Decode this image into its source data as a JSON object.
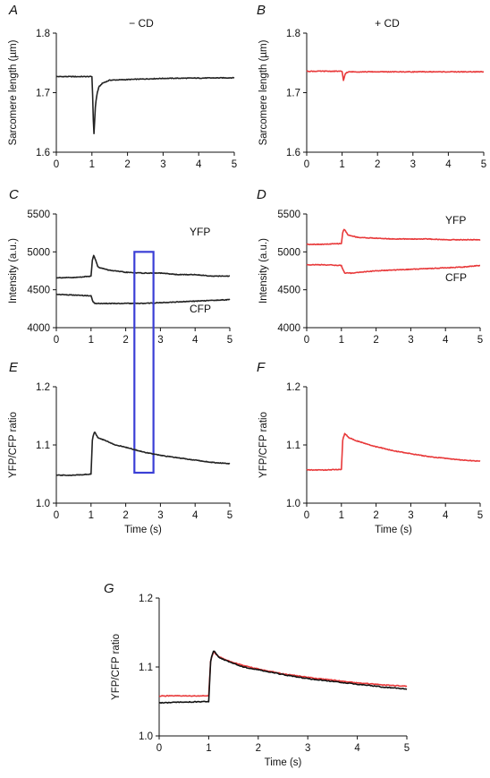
{
  "chart_data": [
    {
      "panel": "A",
      "type": "line",
      "title": "− CD",
      "xlabel": "",
      "ylabel": "Sarcomere length (µm)",
      "xlim": [
        0,
        5
      ],
      "ylim": [
        1.6,
        1.8
      ],
      "xticks": [
        0,
        1,
        2,
        3,
        4,
        5
      ],
      "yticks": [
        1.6,
        1.7,
        1.8
      ],
      "ydecimals": 1,
      "series": [
        {
          "color": "#222222",
          "x": [
            0,
            0.95,
            1.0,
            1.03,
            1.05,
            1.07,
            1.1,
            1.15,
            1.2,
            1.3,
            1.5,
            2.0,
            3.0,
            5.0
          ],
          "y": [
            1.727,
            1.727,
            1.727,
            1.68,
            1.622,
            1.645,
            1.68,
            1.7,
            1.71,
            1.716,
            1.721,
            1.722,
            1.724,
            1.725
          ]
        }
      ]
    },
    {
      "panel": "B",
      "type": "line",
      "title": "+ CD",
      "xlabel": "",
      "ylabel": "Sarcomere length (µm)",
      "xlim": [
        0,
        5
      ],
      "ylim": [
        1.6,
        1.8
      ],
      "xticks": [
        0,
        1,
        2,
        3,
        4,
        5
      ],
      "yticks": [
        1.6,
        1.7,
        1.8
      ],
      "ydecimals": 1,
      "series": [
        {
          "color": "#e8393a",
          "x": [
            0,
            0.95,
            1.0,
            1.04,
            1.07,
            1.1,
            1.2,
            1.4,
            5.0
          ],
          "y": [
            1.736,
            1.736,
            1.735,
            1.72,
            1.728,
            1.733,
            1.735,
            1.735,
            1.735
          ]
        }
      ]
    },
    {
      "panel": "C",
      "type": "line",
      "title": "",
      "xlabel": "",
      "ylabel": "Intensity (a.u.)",
      "xlim": [
        0,
        5
      ],
      "ylim": [
        4000,
        5500
      ],
      "xticks": [
        0,
        1,
        2,
        3,
        4,
        5
      ],
      "yticks": [
        4000,
        4500,
        5000,
        5500
      ],
      "ydecimals": 0,
      "series": [
        {
          "name": "YFP",
          "color": "#222222",
          "x": [
            0,
            0.5,
            1.0,
            1.04,
            1.08,
            1.2,
            1.5,
            2.0,
            2.5,
            3.0,
            3.5,
            4.0,
            4.5,
            5.0
          ],
          "y": [
            4660,
            4660,
            4680,
            4900,
            4960,
            4800,
            4760,
            4730,
            4720,
            4720,
            4700,
            4700,
            4680,
            4680
          ]
        },
        {
          "name": "CFP",
          "color": "#222222",
          "x": [
            0,
            0.5,
            1.0,
            1.05,
            1.1,
            1.5,
            2.0,
            2.5,
            3.0,
            3.5,
            4.0,
            4.5,
            5.0
          ],
          "y": [
            4440,
            4430,
            4420,
            4350,
            4320,
            4320,
            4320,
            4320,
            4330,
            4340,
            4350,
            4360,
            4370
          ]
        }
      ],
      "highlight": {
        "x": [
          2.25,
          2.8
        ],
        "y": [
          4000,
          5000
        ]
      }
    },
    {
      "panel": "D",
      "type": "line",
      "title": "",
      "xlabel": "",
      "ylabel": "Intensity (a.u.)",
      "xlim": [
        0,
        5
      ],
      "ylim": [
        4000,
        5500
      ],
      "xticks": [
        0,
        1,
        2,
        3,
        4,
        5
      ],
      "yticks": [
        4000,
        4500,
        5000,
        5500
      ],
      "ydecimals": 0,
      "series": [
        {
          "name": "YFP",
          "color": "#e8393a",
          "x": [
            0,
            0.5,
            1.0,
            1.04,
            1.08,
            1.2,
            1.5,
            2.0,
            2.5,
            3.0,
            3.5,
            4.0,
            4.5,
            5.0
          ],
          "y": [
            5100,
            5100,
            5110,
            5260,
            5300,
            5220,
            5190,
            5180,
            5170,
            5170,
            5170,
            5160,
            5160,
            5160
          ]
        },
        {
          "name": "CFP",
          "color": "#e8393a",
          "x": [
            0,
            0.5,
            1.0,
            1.05,
            1.1,
            1.3,
            1.5,
            2.0,
            2.5,
            3.0,
            3.5,
            4.0,
            4.5,
            5.0
          ],
          "y": [
            4830,
            4830,
            4820,
            4760,
            4720,
            4720,
            4730,
            4750,
            4760,
            4770,
            4780,
            4790,
            4800,
            4820
          ]
        }
      ]
    },
    {
      "panel": "E",
      "type": "line",
      "title": "",
      "xlabel": "Time (s)",
      "ylabel": "YFP/CFP ratio",
      "xlim": [
        0,
        5
      ],
      "ylim": [
        1.0,
        1.2
      ],
      "xticks": [
        0,
        1,
        2,
        3,
        4,
        5
      ],
      "yticks": [
        1.0,
        1.1,
        1.2
      ],
      "ydecimals": 1,
      "series": [
        {
          "color": "#222222",
          "x": [
            0,
            0.5,
            1.0,
            1.04,
            1.1,
            1.2,
            1.4,
            1.7,
            2.0,
            2.5,
            3.0,
            3.5,
            4.0,
            4.5,
            5.0
          ],
          "y": [
            1.048,
            1.048,
            1.05,
            1.11,
            1.123,
            1.112,
            1.108,
            1.1,
            1.096,
            1.088,
            1.082,
            1.078,
            1.074,
            1.07,
            1.068
          ]
        }
      ]
    },
    {
      "panel": "F",
      "type": "line",
      "title": "",
      "xlabel": "Time (s)",
      "ylabel": "YFP/CFP ratio",
      "xlim": [
        0,
        5
      ],
      "ylim": [
        1.0,
        1.2
      ],
      "xticks": [
        0,
        1,
        2,
        3,
        4,
        5
      ],
      "yticks": [
        1.0,
        1.1,
        1.2
      ],
      "ydecimals": 1,
      "series": [
        {
          "color": "#e8393a",
          "x": [
            0,
            0.5,
            1.0,
            1.04,
            1.1,
            1.2,
            1.4,
            1.7,
            2.0,
            2.5,
            3.0,
            3.5,
            4.0,
            4.5,
            5.0
          ],
          "y": [
            1.057,
            1.057,
            1.058,
            1.11,
            1.12,
            1.113,
            1.108,
            1.102,
            1.097,
            1.09,
            1.085,
            1.08,
            1.077,
            1.074,
            1.072
          ]
        }
      ]
    },
    {
      "panel": "G",
      "type": "line",
      "title": "",
      "xlabel": "Time (s)",
      "ylabel": "YFP/CFP ratio",
      "xlim": [
        0,
        5
      ],
      "ylim": [
        1.0,
        1.2
      ],
      "xticks": [
        0,
        1,
        2,
        3,
        4,
        5
      ],
      "yticks": [
        1.0,
        1.1,
        1.2
      ],
      "ydecimals": 1,
      "series": [
        {
          "color": "#e8393a",
          "x": [
            0,
            0.5,
            1.0,
            1.04,
            1.1,
            1.2,
            1.4,
            1.7,
            2.0,
            2.5,
            3.0,
            3.5,
            4.0,
            4.5,
            5.0
          ],
          "y": [
            1.058,
            1.058,
            1.058,
            1.11,
            1.122,
            1.115,
            1.109,
            1.102,
            1.097,
            1.09,
            1.085,
            1.081,
            1.077,
            1.074,
            1.072
          ]
        },
        {
          "color": "#111111",
          "x": [
            0,
            0.5,
            1.0,
            1.04,
            1.1,
            1.2,
            1.4,
            1.7,
            2.0,
            2.5,
            3.0,
            3.5,
            4.0,
            4.5,
            5.0
          ],
          "y": [
            1.048,
            1.049,
            1.05,
            1.11,
            1.124,
            1.114,
            1.108,
            1.1,
            1.096,
            1.089,
            1.083,
            1.079,
            1.075,
            1.071,
            1.068
          ]
        }
      ]
    }
  ]
}
